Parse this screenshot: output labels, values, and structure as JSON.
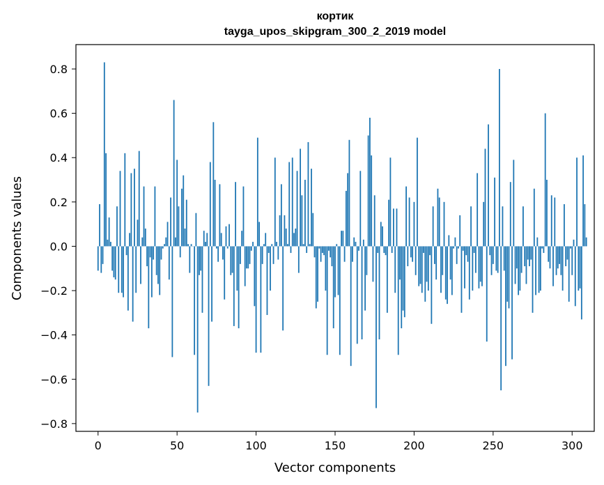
{
  "chart_data": {
    "type": "bar",
    "title": "кортик",
    "subtitle": "tayga_upos_skipgram_300_2_2019 model",
    "xlabel": "Vector components",
    "ylabel": "Components values",
    "xlim": [
      -14,
      314
    ],
    "ylim": [
      -0.835,
      0.91
    ],
    "xticks": [
      0,
      50,
      100,
      150,
      200,
      250,
      300
    ],
    "xtick_labels": [
      "0",
      "50",
      "100",
      "150",
      "200",
      "250",
      "300"
    ],
    "yticks": [
      -0.8,
      -0.6,
      -0.4,
      -0.2,
      0.0,
      0.2,
      0.4,
      0.6,
      0.8
    ],
    "ytick_labels": [
      "−0.8",
      "−0.6",
      "−0.4",
      "−0.2",
      "0.0",
      "0.2",
      "0.4",
      "0.6",
      "0.8"
    ],
    "bar_color": "#1f77b4",
    "grid": false,
    "values": [
      -0.11,
      0.19,
      -0.12,
      -0.08,
      0.83,
      0.42,
      0.03,
      0.13,
      0.02,
      -0.11,
      -0.14,
      -0.15,
      0.18,
      -0.21,
      0.34,
      -0.21,
      -0.23,
      0.42,
      -0.04,
      -0.29,
      0.06,
      0.33,
      -0.34,
      0.35,
      -0.21,
      0.12,
      0.43,
      -0.17,
      0.04,
      0.27,
      0.08,
      -0.09,
      -0.37,
      -0.05,
      -0.23,
      -0.06,
      0.27,
      -0.13,
      -0.17,
      -0.22,
      -0.06,
      -0.01,
      0.01,
      0.04,
      0.11,
      -0.15,
      0.22,
      -0.5,
      0.66,
      0.04,
      0.39,
      0.18,
      -0.05,
      0.26,
      0.32,
      0.08,
      0.21,
      0.01,
      -0.12,
      0.01,
      0.0,
      -0.49,
      0.15,
      -0.75,
      -0.13,
      -0.11,
      -0.3,
      0.07,
      0.02,
      0.06,
      -0.63,
      0.38,
      -0.34,
      0.56,
      0.3,
      -0.01,
      -0.07,
      0.28,
      0.06,
      -0.06,
      -0.24,
      0.09,
      -0.01,
      0.1,
      -0.13,
      -0.12,
      -0.36,
      0.29,
      -0.2,
      -0.37,
      -0.08,
      0.07,
      0.27,
      -0.18,
      -0.1,
      -0.1,
      -0.08,
      -0.02,
      0.02,
      -0.27,
      -0.48,
      0.49,
      0.11,
      -0.48,
      -0.08,
      0.01,
      0.06,
      -0.31,
      -0.03,
      -0.2,
      0.01,
      -0.08,
      0.4,
      0.02,
      -0.06,
      0.14,
      0.28,
      -0.38,
      0.14,
      0.08,
      0.01,
      0.38,
      -0.03,
      0.4,
      0.06,
      0.08,
      0.34,
      -0.12,
      0.44,
      0.23,
      0.01,
      0.3,
      -0.03,
      0.47,
      0.01,
      0.35,
      0.15,
      -0.05,
      -0.28,
      -0.25,
      -0.01,
      -0.07,
      -0.03,
      -0.04,
      -0.2,
      -0.49,
      -0.02,
      -0.05,
      -0.09,
      -0.37,
      -0.23,
      0.01,
      -0.22,
      -0.49,
      0.07,
      0.07,
      -0.07,
      0.25,
      0.33,
      0.48,
      -0.54,
      -0.07,
      0.04,
      0.02,
      -0.44,
      -0.02,
      0.34,
      -0.42,
      0.03,
      -0.29,
      -0.13,
      0.5,
      0.58,
      0.41,
      -0.16,
      0.23,
      -0.73,
      -0.03,
      -0.42,
      0.11,
      0.09,
      -0.03,
      -0.04,
      -0.3,
      0.21,
      0.4,
      -0.03,
      0.17,
      -0.21,
      0.17,
      -0.49,
      -0.15,
      -0.37,
      -0.29,
      -0.32,
      0.27,
      -0.09,
      0.22,
      -0.05,
      -0.07,
      0.2,
      -0.13,
      0.49,
      -0.18,
      -0.17,
      -0.21,
      -0.03,
      -0.25,
      -0.16,
      -0.2,
      -0.04,
      -0.35,
      0.18,
      -0.08,
      -0.15,
      0.26,
      0.22,
      -0.21,
      -0.13,
      0.2,
      -0.24,
      -0.26,
      0.05,
      -0.15,
      -0.22,
      -0.01,
      0.04,
      -0.08,
      -0.01,
      0.14,
      -0.3,
      -0.02,
      -0.19,
      -0.04,
      -0.07,
      -0.24,
      0.18,
      -0.2,
      -0.03,
      -0.12,
      0.33,
      -0.19,
      -0.16,
      -0.18,
      0.2,
      0.44,
      -0.43,
      0.55,
      -0.04,
      -0.13,
      -0.08,
      0.31,
      -0.11,
      -0.12,
      0.8,
      -0.65,
      0.18,
      -0.11,
      -0.54,
      -0.25,
      -0.28,
      0.29,
      -0.51,
      0.39,
      -0.17,
      -0.1,
      -0.22,
      -0.2,
      -0.12,
      0.18,
      -0.09,
      -0.17,
      -0.06,
      -0.09,
      -0.06,
      -0.3,
      0.26,
      -0.22,
      0.04,
      -0.21,
      -0.2,
      -0.01,
      -0.03,
      0.6,
      0.3,
      -0.07,
      -0.1,
      0.23,
      -0.18,
      0.22,
      -0.13,
      -0.1,
      -0.08,
      -0.13,
      -0.2,
      0.19,
      -0.09,
      -0.06,
      -0.25,
      -0.01,
      -0.13,
      0.03,
      -0.27,
      0.4,
      -0.2,
      -0.19,
      -0.33,
      0.41,
      0.19,
      0.04
    ]
  }
}
